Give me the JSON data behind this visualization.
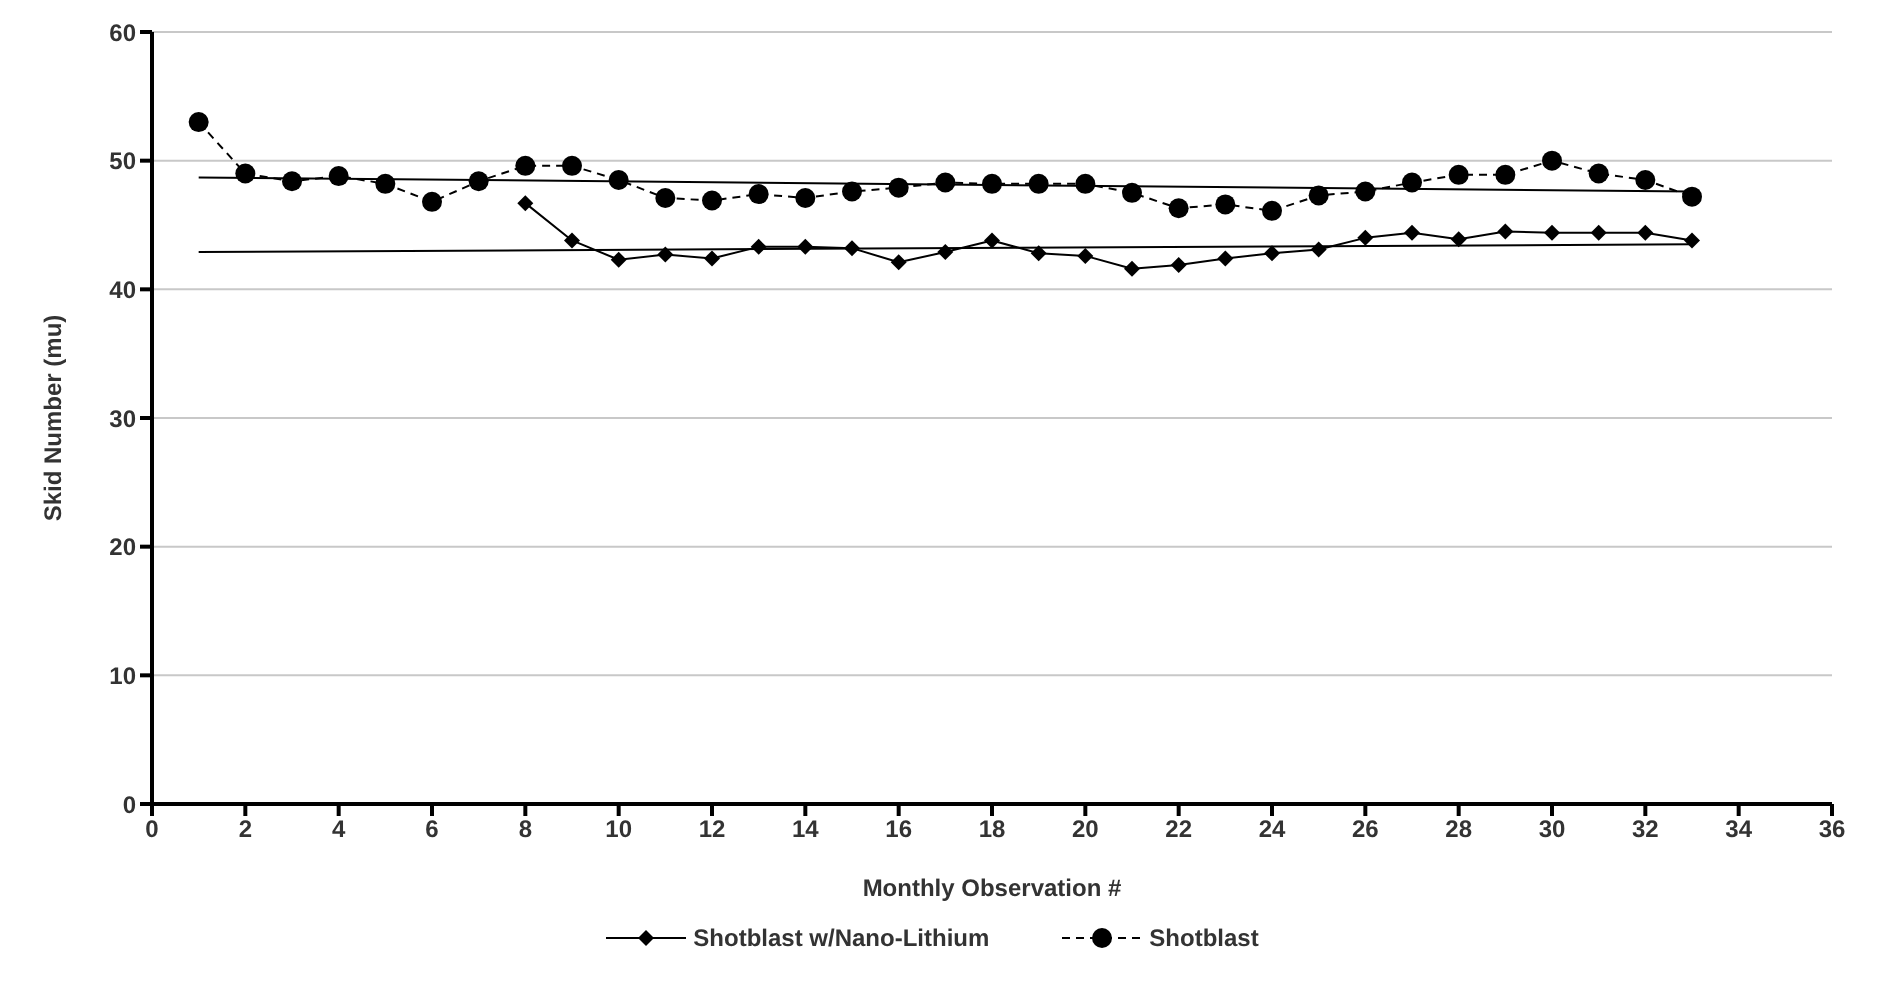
{
  "chart_data": {
    "type": "line",
    "xlabel": "Monthly Observation #",
    "ylabel": "Skid Number (mu)",
    "xlim": [
      0,
      36
    ],
    "xticks": [
      0,
      2,
      4,
      6,
      8,
      10,
      12,
      14,
      16,
      18,
      20,
      22,
      24,
      26,
      28,
      30,
      32,
      34,
      36
    ],
    "ylim": [
      0,
      60
    ],
    "yticks": [
      0,
      10,
      20,
      30,
      40,
      50,
      60
    ],
    "grid": "y",
    "legend": "bottom",
    "series": [
      {
        "name": "Shotblast w/Nano-Lithium",
        "color": "#000000",
        "marker": "diamond",
        "line_style": "solid",
        "x": [
          8,
          9,
          10,
          11,
          12,
          13,
          14,
          15,
          16,
          17,
          18,
          19,
          20,
          21,
          22,
          23,
          24,
          25,
          26,
          27,
          28,
          29,
          30,
          31,
          32,
          33
        ],
        "values": [
          46.7,
          43.8,
          42.3,
          42.7,
          42.4,
          43.3,
          43.3,
          43.2,
          42.1,
          42.9,
          43.8,
          42.8,
          42.6,
          41.6,
          41.9,
          42.4,
          42.8,
          43.1,
          44,
          44.4,
          43.9,
          44.5,
          44.4,
          44.4,
          44.4,
          43.8
        ]
      },
      {
        "name": "Shotblast",
        "color": "#000000",
        "marker": "circle",
        "line_style": "dashed",
        "x": [
          1,
          2,
          3,
          4,
          5,
          6,
          7,
          8,
          9,
          10,
          11,
          12,
          13,
          14,
          15,
          16,
          17,
          18,
          19,
          20,
          21,
          22,
          23,
          24,
          25,
          26,
          27,
          28,
          29,
          30,
          31,
          32,
          33
        ],
        "values": [
          53,
          49,
          48.4,
          48.8,
          48.2,
          46.8,
          48.4,
          49.6,
          49.6,
          48.5,
          47.1,
          46.9,
          47.4,
          47.1,
          47.6,
          47.9,
          48.3,
          48.2,
          48.2,
          48.2,
          47.5,
          46.3,
          46.6,
          46.1,
          47.3,
          47.6,
          48.3,
          48.9,
          48.9,
          50,
          49,
          48.5,
          47.2
        ]
      },
      {
        "color": "#000000",
        "marker": "none",
        "line_style": "solid",
        "x": [
          1,
          33
        ],
        "values": [
          42.9,
          43.5
        ]
      },
      {
        "color": "#000000",
        "marker": "none",
        "line_style": "solid",
        "x": [
          1,
          33
        ],
        "values": [
          48.7,
          47.6
        ]
      }
    ]
  }
}
